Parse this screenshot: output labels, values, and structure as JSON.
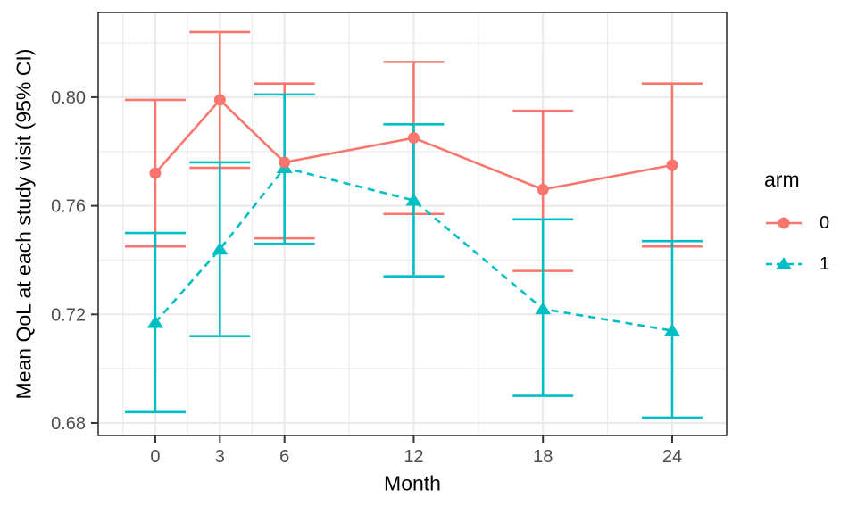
{
  "chart_data": {
    "type": "line",
    "title": "",
    "xlabel": "Month",
    "ylabel": "Mean QoL at each study visit (95% CI)",
    "categories": [
      0,
      3,
      6,
      12,
      18,
      24
    ],
    "series": [
      {
        "name": "0",
        "color": "#F8766D",
        "marker": "circle",
        "linestyle": "solid",
        "values": [
          0.772,
          0.799,
          0.776,
          0.785,
          0.766,
          0.775
        ],
        "ci_lower": [
          0.745,
          0.774,
          0.748,
          0.757,
          0.736,
          0.745
        ],
        "ci_upper": [
          0.799,
          0.824,
          0.805,
          0.813,
          0.795,
          0.805
        ]
      },
      {
        "name": "1",
        "color": "#00BFC4",
        "marker": "triangle",
        "linestyle": "dashed",
        "values": [
          0.717,
          0.744,
          0.774,
          0.762,
          0.722,
          0.714
        ],
        "ci_lower": [
          0.684,
          0.712,
          0.746,
          0.734,
          0.69,
          0.682
        ],
        "ci_upper": [
          0.75,
          0.776,
          0.801,
          0.79,
          0.755,
          0.747
        ]
      }
    ],
    "error_bars": "95% confidence interval, capped ends",
    "axes": {
      "x_ticks": [
        0,
        3,
        6,
        12,
        18,
        24
      ],
      "x_tick_labels": [
        "0",
        "3",
        "6",
        "12",
        "18",
        "24"
      ],
      "x_minor_ticks": [
        -1.5,
        1.5,
        4.5,
        9,
        15,
        21
      ],
      "xlim": [
        -2.65,
        26.53
      ],
      "y_ticks": [
        0.68,
        0.72,
        0.76,
        0.8
      ],
      "y_tick_labels": [
        "0.68",
        "0.72",
        "0.76",
        "0.80"
      ],
      "y_minor_ticks": [
        0.7,
        0.74,
        0.78,
        0.82
      ],
      "ylim": [
        0.6754,
        0.8312
      ],
      "grid": "major and minor, light gray on white panel, black panel border"
    },
    "legend": {
      "title": "arm",
      "position": "right",
      "entries": [
        {
          "label": "0",
          "color": "#F8766D",
          "marker": "circle",
          "linestyle": "solid"
        },
        {
          "label": "1",
          "color": "#00BFC4",
          "marker": "triangle",
          "linestyle": "dashed"
        }
      ]
    },
    "style_colors": {
      "grid": "#EBEBEB",
      "panel_border": "#333333",
      "tick_marks": "#333333",
      "tick_labels": "#4D4D4D",
      "titles": "#000000",
      "background": "#FFFFFF"
    }
  }
}
